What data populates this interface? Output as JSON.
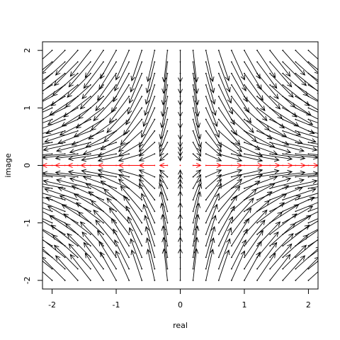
{
  "chart_data": {
    "type": "vector-field",
    "title": "",
    "xlabel": "real",
    "ylabel": "image",
    "xlim": [
      -2.15,
      2.15
    ],
    "ylim": [
      -2.15,
      2.15
    ],
    "x_ticks": [
      -2,
      -1,
      0,
      1,
      2
    ],
    "x_tick_labels": [
      "-2",
      "-1",
      "0",
      "1",
      "2"
    ],
    "y_ticks": [
      -2,
      -1,
      0,
      1,
      2
    ],
    "y_tick_labels": [
      "-2",
      "-1",
      "0",
      "1",
      "2"
    ],
    "grid": {
      "x_from": -2.0,
      "x_to": 2.0,
      "y_from": -2.0,
      "y_to": 2.0,
      "step": 0.2
    },
    "field": "z^2 derivative direction: u = 2x, v = -2y, arrow length ~ 0.3 * magnitude, clipped at 0.55",
    "highlight_row_y": 0,
    "colors": {
      "arrow": "#000000",
      "highlight": "#ff0000"
    }
  }
}
